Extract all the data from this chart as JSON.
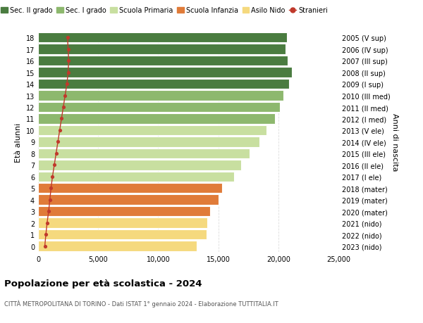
{
  "ages": [
    0,
    1,
    2,
    3,
    4,
    5,
    6,
    7,
    8,
    9,
    10,
    11,
    12,
    13,
    14,
    15,
    16,
    17,
    18
  ],
  "right_labels": [
    "2023 (nido)",
    "2022 (nido)",
    "2021 (nido)",
    "2020 (mater)",
    "2019 (mater)",
    "2018 (mater)",
    "2017 (I ele)",
    "2016 (II ele)",
    "2015 (III ele)",
    "2014 (IV ele)",
    "2013 (V ele)",
    "2012 (I med)",
    "2011 (II med)",
    "2010 (III med)",
    "2009 (I sup)",
    "2008 (II sup)",
    "2007 (III sup)",
    "2006 (IV sup)",
    "2005 (V sup)"
  ],
  "bar_values": [
    13200,
    14000,
    14100,
    14300,
    15000,
    15300,
    16300,
    16900,
    17600,
    18400,
    19000,
    19700,
    20100,
    20400,
    20900,
    21100,
    20800,
    20600,
    20700
  ],
  "stranieri_values": [
    560,
    650,
    750,
    880,
    980,
    1080,
    1200,
    1350,
    1500,
    1650,
    1800,
    1950,
    2100,
    2250,
    2400,
    2500,
    2550,
    2500,
    2450
  ],
  "bar_colors": [
    "#f5d97e",
    "#f5d97e",
    "#f5d97e",
    "#e07b39",
    "#e07b39",
    "#e07b39",
    "#c8dfa0",
    "#c8dfa0",
    "#c8dfa0",
    "#c8dfa0",
    "#c8dfa0",
    "#8db86e",
    "#8db86e",
    "#8db86e",
    "#4a7c40",
    "#4a7c40",
    "#4a7c40",
    "#4a7c40",
    "#4a7c40"
  ],
  "legend_labels": [
    "Sec. II grado",
    "Sec. I grado",
    "Scuola Primaria",
    "Scuola Infanzia",
    "Asilo Nido",
    "Stranieri"
  ],
  "legend_colors": [
    "#4a7c40",
    "#8db86e",
    "#c8dfa0",
    "#e07b39",
    "#f5d97e",
    "#c0392b"
  ],
  "ylabel": "Età alunni",
  "right_ylabel": "Anni di nascita",
  "title": "Popolazione per età scolastica - 2024",
  "subtitle": "CITTÀ METROPOLITANA DI TORINO - Dati ISTAT 1° gennaio 2024 - Elaborazione TUTTITALIA.IT",
  "xlim": [
    0,
    25000
  ],
  "xticks": [
    0,
    5000,
    10000,
    15000,
    20000,
    25000
  ],
  "xtick_labels": [
    "0",
    "5,000",
    "10,000",
    "15,000",
    "20,000",
    "25,000"
  ],
  "background_color": "#ffffff",
  "grid_color": "#dddddd"
}
